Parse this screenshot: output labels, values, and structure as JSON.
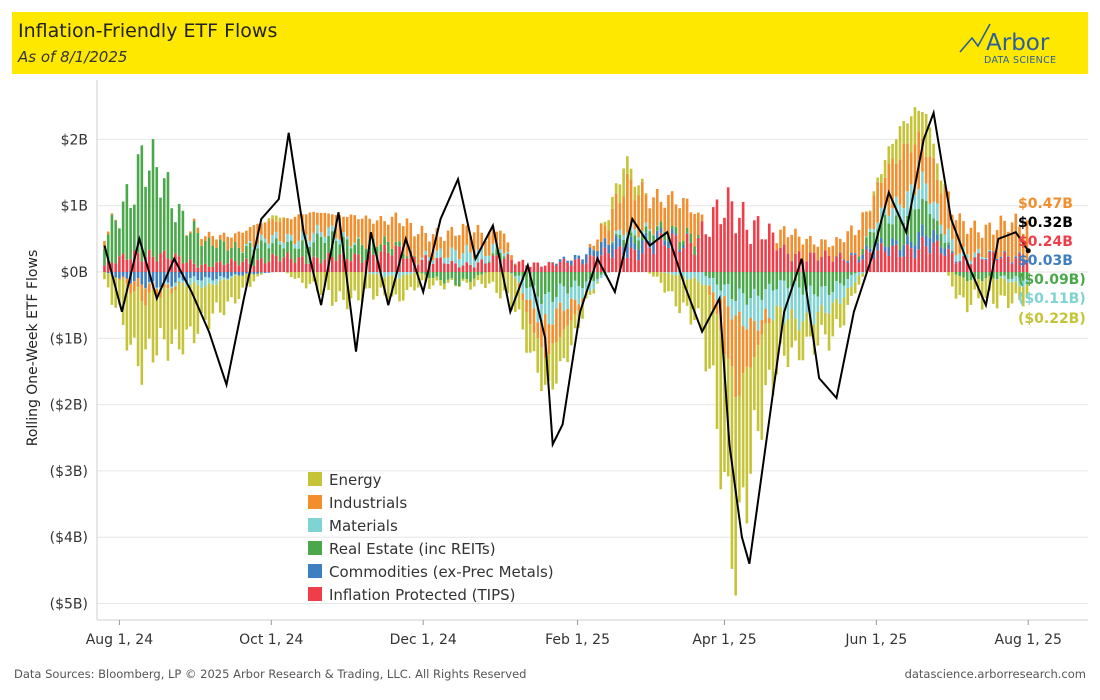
{
  "header": {
    "title": "Inflation-Friendly ETF Flows",
    "subtitle": "As of 8/1/2025",
    "logo_word": "Arbor",
    "logo_sub": "DATA SCIENCE"
  },
  "footer": {
    "sources": "Data Sources: Bloomberg, LP © 2025 Arbor Research & Trading, LLC. All Rights Reserved",
    "site": "datascience.arborresearch.com"
  },
  "colors": {
    "energy": "#c5c439",
    "industrials": "#f28e2c",
    "materials": "#7fd3d3",
    "real_estate": "#4aa84a",
    "commodities": "#3d7fc0",
    "tips": "#ef3e4a",
    "total": "#000000"
  },
  "chart_data": {
    "type": "bar",
    "stacked": true,
    "ylabel": "Rolling One-Week ETF Flows",
    "ylim": [
      -5.4,
      2.5
    ],
    "yticks": [
      2,
      1,
      0,
      -1,
      -2,
      -3,
      -4,
      -5
    ],
    "ytick_labels": [
      "$2B",
      "$1B",
      "$0B",
      "($1B)",
      "($2B)",
      "($3B)",
      "($4B)",
      "($5B)"
    ],
    "xlim": [
      "2024-07-23",
      "2025-08-25"
    ],
    "xticks": [
      "2024-08-01",
      "2024-10-01",
      "2024-12-01",
      "2025-02-01",
      "2025-04-01",
      "2025-06-01",
      "2025-08-01"
    ],
    "xtick_labels": [
      "Aug 1, 24",
      "Oct 1, 24",
      "Dec 1, 24",
      "Feb 1, 25",
      "Apr 1, 25",
      "Jun 1, 25",
      "Aug 1, 25"
    ],
    "grid": true,
    "legend_position": "bottom-left",
    "series": [
      {
        "name": "Energy",
        "key": "energy",
        "anchors": [
          [
            "2024-07-26",
            -0.2
          ],
          [
            "2024-08-10",
            -1.0
          ],
          [
            "2024-09-05",
            -0.6
          ],
          [
            "2024-10-02",
            0.1
          ],
          [
            "2024-10-25",
            -0.4
          ],
          [
            "2024-11-20",
            -0.3
          ],
          [
            "2024-12-15",
            0.0
          ],
          [
            "2025-01-01",
            -0.3
          ],
          [
            "2025-01-20",
            -0.6
          ],
          [
            "2025-02-20",
            0.3
          ],
          [
            "2025-03-20",
            -0.6
          ],
          [
            "2025-04-05",
            -2.3
          ],
          [
            "2025-04-25",
            -0.5
          ],
          [
            "2025-05-15",
            -0.4
          ],
          [
            "2025-06-05",
            0.2
          ],
          [
            "2025-06-20",
            0.6
          ],
          [
            "2025-07-05",
            -0.4
          ],
          [
            "2025-08-01",
            -0.22
          ]
        ]
      },
      {
        "name": "Industrials",
        "key": "industrials",
        "anchors": [
          [
            "2024-07-26",
            0.1
          ],
          [
            "2024-08-10",
            -0.2
          ],
          [
            "2024-09-05",
            0.1
          ],
          [
            "2024-10-02",
            0.3
          ],
          [
            "2024-10-25",
            0.3
          ],
          [
            "2024-11-20",
            0.4
          ],
          [
            "2024-12-15",
            0.3
          ],
          [
            "2025-01-01",
            0.3
          ],
          [
            "2025-01-20",
            -0.6
          ],
          [
            "2025-02-20",
            0.6
          ],
          [
            "2025-03-20",
            0.4
          ],
          [
            "2025-04-05",
            -1.0
          ],
          [
            "2025-04-25",
            0.3
          ],
          [
            "2025-05-15",
            0.2
          ],
          [
            "2025-06-05",
            0.6
          ],
          [
            "2025-06-20",
            0.7
          ],
          [
            "2025-07-05",
            0.4
          ],
          [
            "2025-08-01",
            0.47
          ]
        ]
      },
      {
        "name": "Materials",
        "key": "materials",
        "anchors": [
          [
            "2024-07-26",
            0.0
          ],
          [
            "2024-08-10",
            0.0
          ],
          [
            "2024-09-05",
            -0.1
          ],
          [
            "2024-10-02",
            0.1
          ],
          [
            "2024-10-25",
            0.1
          ],
          [
            "2024-11-20",
            -0.1
          ],
          [
            "2024-12-15",
            0.2
          ],
          [
            "2025-01-01",
            0.1
          ],
          [
            "2025-01-20",
            -0.4
          ],
          [
            "2025-02-20",
            0.1
          ],
          [
            "2025-03-20",
            -0.1
          ],
          [
            "2025-04-05",
            -0.3
          ],
          [
            "2025-04-25",
            -0.5
          ],
          [
            "2025-05-15",
            -0.3
          ],
          [
            "2025-06-05",
            0.2
          ],
          [
            "2025-06-20",
            0.3
          ],
          [
            "2025-07-05",
            0.1
          ],
          [
            "2025-08-01",
            -0.11
          ]
        ]
      },
      {
        "name": "Real Estate (inc REITs)",
        "key": "real_estate",
        "anchors": [
          [
            "2024-07-26",
            0.3
          ],
          [
            "2024-08-10",
            1.4
          ],
          [
            "2024-09-05",
            0.3
          ],
          [
            "2024-10-02",
            0.2
          ],
          [
            "2024-10-25",
            0.3
          ],
          [
            "2024-11-20",
            0.1
          ],
          [
            "2024-12-15",
            -0.2
          ],
          [
            "2025-01-01",
            0.1
          ],
          [
            "2025-01-20",
            -0.4
          ],
          [
            "2025-02-20",
            0.1
          ],
          [
            "2025-03-20",
            0.1
          ],
          [
            "2025-04-05",
            -0.4
          ],
          [
            "2025-04-25",
            -0.2
          ],
          [
            "2025-05-15",
            -0.3
          ],
          [
            "2025-06-05",
            0.4
          ],
          [
            "2025-06-20",
            0.4
          ],
          [
            "2025-07-05",
            -0.1
          ],
          [
            "2025-08-01",
            -0.09
          ]
        ]
      },
      {
        "name": "Commodities (ex-Prec Metals)",
        "key": "commodities",
        "anchors": [
          [
            "2024-07-26",
            0.0
          ],
          [
            "2024-08-10",
            -0.2
          ],
          [
            "2024-09-05",
            -0.1
          ],
          [
            "2024-10-02",
            0.0
          ],
          [
            "2024-10-25",
            0.0
          ],
          [
            "2024-11-20",
            0.0
          ],
          [
            "2024-12-15",
            0.0
          ],
          [
            "2025-01-01",
            0.0
          ],
          [
            "2025-01-20",
            0.0
          ],
          [
            "2025-02-20",
            0.2
          ],
          [
            "2025-03-20",
            0.0
          ],
          [
            "2025-04-05",
            0.0
          ],
          [
            "2025-04-25",
            0.0
          ],
          [
            "2025-05-15",
            0.0
          ],
          [
            "2025-06-05",
            0.1
          ],
          [
            "2025-06-20",
            0.2
          ],
          [
            "2025-07-05",
            0.0
          ],
          [
            "2025-08-01",
            0.03
          ]
        ]
      },
      {
        "name": "Inflation Protected (TIPS)",
        "key": "tips",
        "anchors": [
          [
            "2024-07-26",
            0.1
          ],
          [
            "2024-08-10",
            0.3
          ],
          [
            "2024-09-05",
            0.1
          ],
          [
            "2024-10-02",
            0.2
          ],
          [
            "2024-10-25",
            0.2
          ],
          [
            "2024-11-20",
            0.3
          ],
          [
            "2024-12-15",
            0.1
          ],
          [
            "2025-01-01",
            0.2
          ],
          [
            "2025-01-20",
            0.1
          ],
          [
            "2025-02-20",
            0.3
          ],
          [
            "2025-03-20",
            0.5
          ],
          [
            "2025-04-05",
            1.0
          ],
          [
            "2025-04-25",
            0.3
          ],
          [
            "2025-05-15",
            0.2
          ],
          [
            "2025-06-05",
            0.3
          ],
          [
            "2025-06-20",
            0.4
          ],
          [
            "2025-07-05",
            0.2
          ],
          [
            "2025-08-01",
            0.24
          ]
        ]
      }
    ],
    "total_line": {
      "name": "Total",
      "points": [
        [
          "2024-07-26",
          0.4
        ],
        [
          "2024-08-02",
          -0.6
        ],
        [
          "2024-08-09",
          0.5
        ],
        [
          "2024-08-16",
          -0.4
        ],
        [
          "2024-08-23",
          0.2
        ],
        [
          "2024-08-30",
          -0.3
        ],
        [
          "2024-09-06",
          -0.9
        ],
        [
          "2024-09-13",
          -1.7
        ],
        [
          "2024-09-20",
          -0.4
        ],
        [
          "2024-09-27",
          0.8
        ],
        [
          "2024-10-04",
          1.1
        ],
        [
          "2024-10-08",
          2.1
        ],
        [
          "2024-10-14",
          0.6
        ],
        [
          "2024-10-21",
          -0.5
        ],
        [
          "2024-10-28",
          0.9
        ],
        [
          "2024-11-04",
          -1.2
        ],
        [
          "2024-11-10",
          0.6
        ],
        [
          "2024-11-17",
          -0.5
        ],
        [
          "2024-11-24",
          0.5
        ],
        [
          "2024-12-01",
          -0.3
        ],
        [
          "2024-12-08",
          0.8
        ],
        [
          "2024-12-15",
          1.4
        ],
        [
          "2024-12-22",
          0.2
        ],
        [
          "2024-12-29",
          0.7
        ],
        [
          "2025-01-05",
          -0.6
        ],
        [
          "2025-01-12",
          0.1
        ],
        [
          "2025-01-19",
          -1.0
        ],
        [
          "2025-01-22",
          -2.6
        ],
        [
          "2025-01-26",
          -2.3
        ],
        [
          "2025-02-02",
          -0.6
        ],
        [
          "2025-02-09",
          0.2
        ],
        [
          "2025-02-16",
          -0.3
        ],
        [
          "2025-02-23",
          0.8
        ],
        [
          "2025-03-02",
          0.4
        ],
        [
          "2025-03-09",
          0.6
        ],
        [
          "2025-03-16",
          -0.2
        ],
        [
          "2025-03-23",
          -0.9
        ],
        [
          "2025-03-30",
          -0.4
        ],
        [
          "2025-04-03",
          -2.6
        ],
        [
          "2025-04-08",
          -4.0
        ],
        [
          "2025-04-11",
          -4.4
        ],
        [
          "2025-04-18",
          -2.5
        ],
        [
          "2025-04-25",
          -0.6
        ],
        [
          "2025-05-02",
          0.2
        ],
        [
          "2025-05-09",
          -1.6
        ],
        [
          "2025-05-16",
          -1.9
        ],
        [
          "2025-05-23",
          -0.6
        ],
        [
          "2025-05-30",
          0.2
        ],
        [
          "2025-06-06",
          1.2
        ],
        [
          "2025-06-13",
          0.6
        ],
        [
          "2025-06-20",
          2.0
        ],
        [
          "2025-06-24",
          2.4
        ],
        [
          "2025-07-01",
          0.8
        ],
        [
          "2025-07-08",
          0.1
        ],
        [
          "2025-07-15",
          -0.5
        ],
        [
          "2025-07-20",
          0.5
        ],
        [
          "2025-07-27",
          0.6
        ],
        [
          "2025-08-01",
          0.32
        ]
      ]
    },
    "end_labels": [
      {
        "text": "$0.47B",
        "key": "industrials",
        "value": 0.47
      },
      {
        "text": "$0.32B",
        "key": "total",
        "value": 0.32
      },
      {
        "text": "$0.24B",
        "key": "tips",
        "value": 0.24
      },
      {
        "text": "$0.03B",
        "key": "commodities",
        "value": 0.03
      },
      {
        "text": "($0.09B)",
        "key": "real_estate",
        "value": -0.09
      },
      {
        "text": "($0.11B)",
        "key": "materials",
        "value": -0.11
      },
      {
        "text": "($0.22B)",
        "key": "energy",
        "value": -0.22
      }
    ]
  }
}
